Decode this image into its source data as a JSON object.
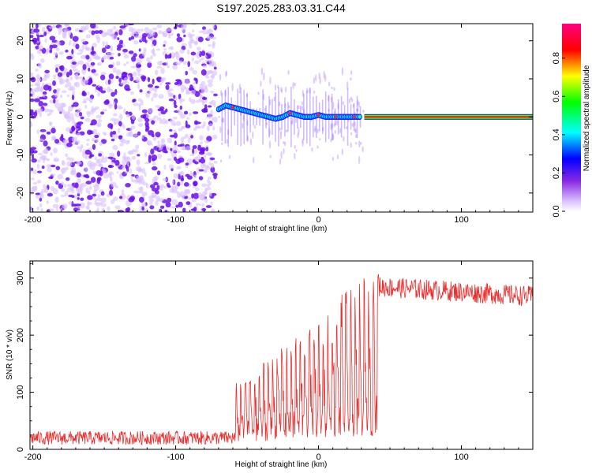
{
  "title": "S197.2025.283.03.31.C44",
  "colors": {
    "snr_line": "#e83030",
    "axis": "#000000",
    "background": "#ffffff",
    "scatter_light": "#d9c2ff",
    "scatter_dark": "#6a10e8"
  },
  "chart_data": [
    {
      "type": "heatmap",
      "name": "spectrogram",
      "xlabel": "Height of straight line (km)",
      "ylabel": "Frequency (Hz)",
      "xlim": [
        -202,
        150
      ],
      "ylim": [
        -25,
        24.5
      ],
      "x_ticks": [
        -200,
        -100,
        0,
        100
      ],
      "x_tick_labels": [
        "-200",
        "-100",
        "0",
        "100"
      ],
      "y_ticks": [
        -20,
        -10,
        0,
        10,
        20
      ],
      "y_tick_labels": [
        "-20",
        "-10",
        "0",
        "10",
        "20"
      ],
      "noise_region_x": [
        -202,
        -70
      ],
      "carrier_start_x": 32,
      "carrier_frequency": 0,
      "trace": {
        "x": [
          -70,
          -65,
          -60,
          -55,
          -50,
          -45,
          -40,
          -35,
          -30,
          -25,
          -20,
          -15,
          -10,
          -5,
          0,
          5,
          10,
          15,
          20,
          25,
          30
        ],
        "y": [
          2,
          3,
          2.5,
          2,
          1.5,
          1,
          0.5,
          0,
          -0.5,
          0,
          1,
          0.5,
          0,
          0,
          0.5,
          0,
          0,
          0,
          0,
          0,
          0
        ]
      }
    },
    {
      "type": "colorbar",
      "label": "Normalized spectral amplitude",
      "ticks": [
        0.0,
        0.2,
        0.4,
        0.6,
        0.8
      ],
      "tick_labels": [
        "0.0",
        "0.2",
        "0.4",
        "0.6",
        "0.8"
      ],
      "range": [
        0,
        0.98
      ],
      "stops": [
        "#ffffff",
        "#b36bff",
        "#0000ff",
        "#00ffff",
        "#00ff00",
        "#ffff00",
        "#ff0000",
        "#ff0080"
      ]
    },
    {
      "type": "line",
      "name": "snr",
      "xlabel": "Height of straight line (km)",
      "ylabel": "SNR (10 * v/v)",
      "xlim": [
        -202,
        150
      ],
      "ylim": [
        0,
        330
      ],
      "x_ticks": [
        -200,
        -100,
        0,
        100
      ],
      "x_tick_labels": [
        "-200",
        "-100",
        "0",
        "100"
      ],
      "y_ticks": [
        0,
        100,
        200,
        300
      ],
      "y_tick_labels": [
        "0",
        "100",
        "200",
        "300"
      ],
      "segments": [
        {
          "x_range": [
            -202,
            -58
          ],
          "baseline": 20,
          "noise": 12
        },
        {
          "x_range": [
            -58,
            42
          ],
          "baseline_start": 40,
          "baseline_end": 80,
          "peak_start": 110,
          "peak_end": 310
        },
        {
          "x_range": [
            42,
            150
          ],
          "baseline_start": 285,
          "baseline_end": 268,
          "noise": 18
        }
      ]
    }
  ]
}
